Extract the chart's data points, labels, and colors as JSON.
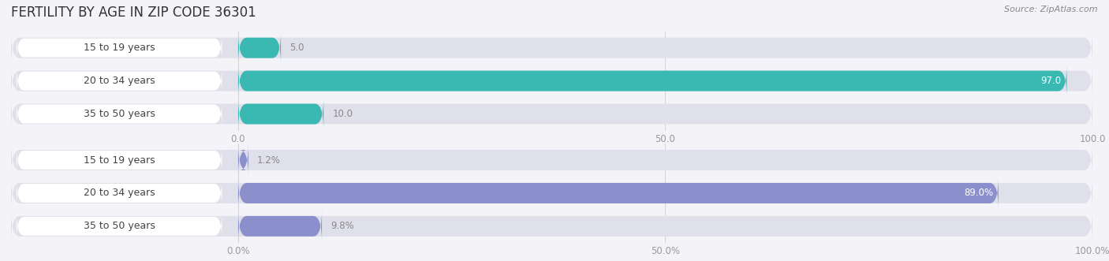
{
  "title": "FERTILITY BY AGE IN ZIP CODE 36301",
  "source": "Source: ZipAtlas.com",
  "top_chart": {
    "categories": [
      "15 to 19 years",
      "20 to 34 years",
      "35 to 50 years"
    ],
    "values": [
      5.0,
      97.0,
      10.0
    ],
    "max_value": 100.0,
    "x_ticks": [
      0.0,
      50.0,
      100.0
    ],
    "x_tick_labels": [
      "0.0",
      "50.0",
      "100.0"
    ],
    "bar_color": "#3ab8b2",
    "bar_bg_color": "#e0e0ea",
    "label_color_inside": "#ffffff",
    "label_color_outside": "#888888"
  },
  "bottom_chart": {
    "categories": [
      "15 to 19 years",
      "20 to 34 years",
      "35 to 50 years"
    ],
    "values": [
      1.2,
      89.0,
      9.8
    ],
    "max_value": 100.0,
    "x_ticks": [
      0.0,
      50.0,
      100.0
    ],
    "x_tick_labels": [
      "0.0%",
      "50.0%",
      "100.0%"
    ],
    "bar_color": "#8b90cc",
    "bar_bg_color": "#e0e0ea",
    "label_color_inside": "#ffffff",
    "label_color_outside": "#888888"
  },
  "bg_color": "#f4f4f8",
  "title_color": "#333333",
  "axis_label_color": "#999999",
  "title_fontsize": 12,
  "axis_fontsize": 8.5,
  "bar_label_fontsize": 8.5,
  "category_fontsize": 9,
  "label_chip_color": "#ffffff",
  "label_chip_text_color": "#444444"
}
